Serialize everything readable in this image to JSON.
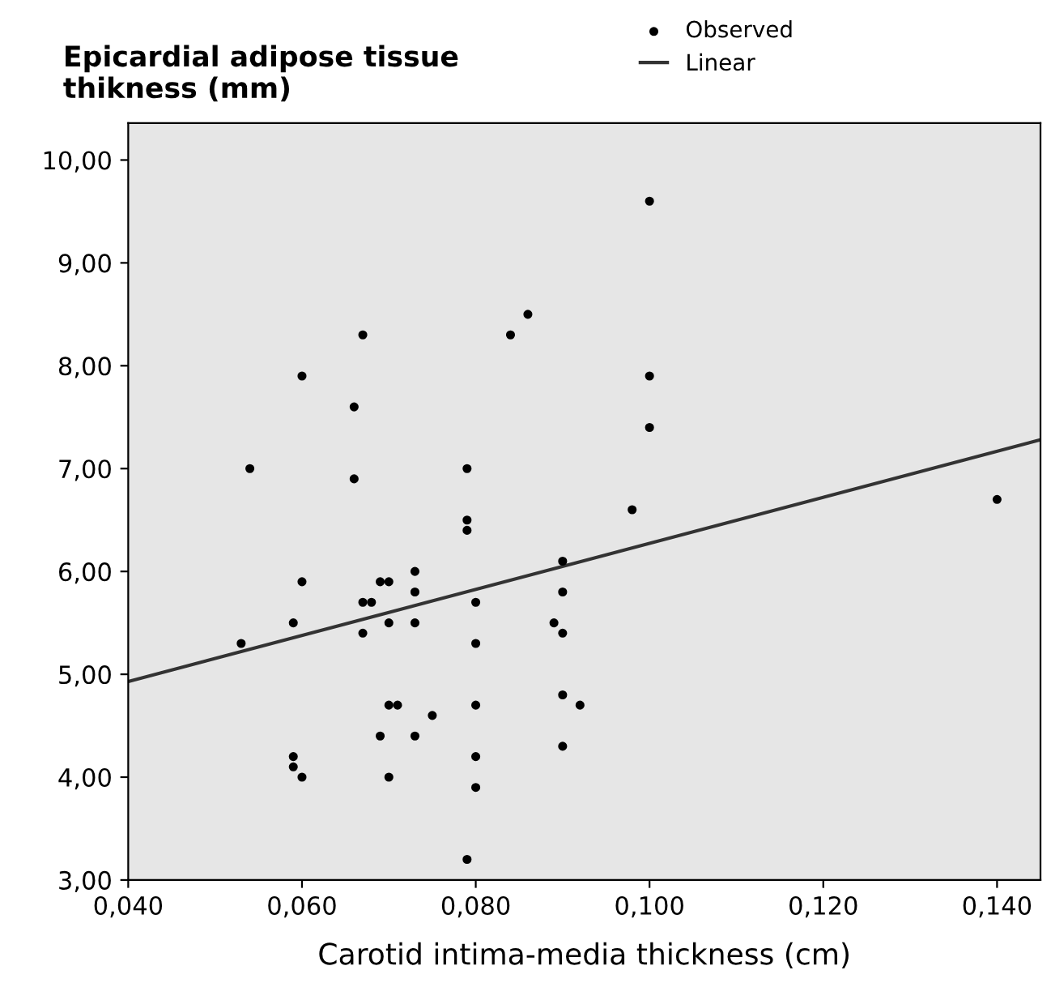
{
  "chart_data": {
    "type": "scatter",
    "ylabel": "Epicardial adipose tissue\nthikness (mm)",
    "xlabel": "Carotid intima-media thickness (cm)",
    "xlim": [
      0.04,
      0.145
    ],
    "ylim": [
      3,
      10.36
    ],
    "xticks": [
      {
        "value": 0.04,
        "label": "0,040"
      },
      {
        "value": 0.06,
        "label": "0,060"
      },
      {
        "value": 0.08,
        "label": "0,080"
      },
      {
        "value": 0.1,
        "label": "0,100"
      },
      {
        "value": 0.12,
        "label": "0,120"
      },
      {
        "value": 0.14,
        "label": "0,140"
      }
    ],
    "yticks": [
      {
        "value": 3,
        "label": "3,00"
      },
      {
        "value": 4,
        "label": "4,00"
      },
      {
        "value": 5,
        "label": "5,00"
      },
      {
        "value": 6,
        "label": "6,00"
      },
      {
        "value": 7,
        "label": "7,00"
      },
      {
        "value": 8,
        "label": "8,00"
      },
      {
        "value": 9,
        "label": "9,00"
      },
      {
        "value": 10,
        "label": "10,00"
      }
    ],
    "grid": false,
    "legend": "top",
    "marker": "circle",
    "series": [
      {
        "name": "Observed",
        "color": "#000000",
        "x": [
          0.1,
          0.06,
          0.067,
          0.084,
          0.086,
          0.1,
          0.066,
          0.054,
          0.066,
          0.079,
          0.079,
          0.079,
          0.06,
          0.069,
          0.07,
          0.073,
          0.073,
          0.073,
          0.067,
          0.068,
          0.067,
          0.07,
          0.059,
          0.053,
          0.08,
          0.08,
          0.089,
          0.059,
          0.059,
          0.06,
          0.069,
          0.07,
          0.071,
          0.073,
          0.075,
          0.07,
          0.08,
          0.08,
          0.08,
          0.079,
          0.1,
          0.098,
          0.14,
          0.09,
          0.09,
          0.09,
          0.09,
          0.092,
          0.09
        ],
        "values": [
          9.6,
          7.9,
          8.3,
          8.3,
          8.5,
          7.9,
          7.6,
          7.0,
          6.9,
          7.0,
          6.5,
          6.4,
          5.9,
          5.9,
          5.9,
          6.0,
          5.8,
          5.5,
          5.7,
          5.7,
          5.4,
          5.5,
          5.5,
          5.3,
          5.7,
          5.3,
          5.5,
          4.2,
          4.1,
          4.0,
          4.4,
          4.7,
          4.7,
          4.4,
          4.6,
          4.0,
          4.7,
          4.2,
          3.9,
          3.2,
          7.4,
          6.6,
          6.7,
          6.1,
          5.8,
          5.4,
          4.8,
          4.7,
          4.3
        ]
      },
      {
        "name": "Linear",
        "type": "line",
        "color": "#333333",
        "line_style": "solid",
        "marker": "none",
        "x": [
          0.04,
          0.145
        ],
        "values": [
          4.93,
          7.28
        ]
      }
    ]
  }
}
